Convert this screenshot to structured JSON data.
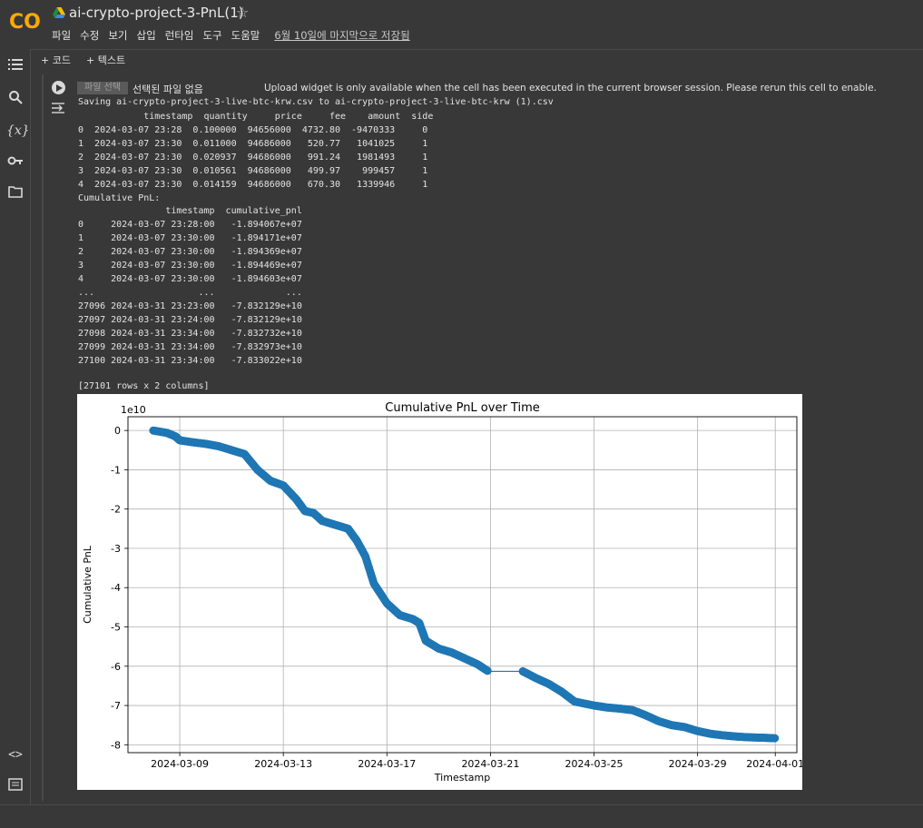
{
  "app": {
    "title": "ai-crypto-project-3-PnL(1)",
    "logo_text": "CO",
    "star": "☆",
    "menu": [
      "파일",
      "수정",
      "보기",
      "삽입",
      "런타임",
      "도구",
      "도움말"
    ],
    "last_saved": "6월 10일에 마지막으로 저장됨"
  },
  "toolbar": {
    "add_code": "+ 코드",
    "add_text": "+ 텍스트"
  },
  "sidebar_icons": [
    "table-of-contents-icon",
    "search-icon",
    "variables-icon",
    "secrets-key-icon",
    "files-folder-icon",
    "code-snippets-icon",
    "terminal-icon"
  ],
  "cell": {
    "file_button": "파일 선택",
    "no_file": "선택된 파일 없음",
    "upload_message": "Upload widget is only available when the cell has been executed in the current browser session. Please rerun this cell to enable.",
    "saving_line": "Saving ai-crypto-project-3-live-btc-krw.csv to ai-crypto-project-3-live-btc-krw (1).csv",
    "trades_table_text": "            timestamp  quantity     price     fee    amount  side\n0  2024-03-07 23:28  0.100000  94656000  4732.80  -9470333     0\n1  2024-03-07 23:30  0.011000  94686000   520.77   1041025     1\n2  2024-03-07 23:30  0.020937  94686000   991.24   1981493     1\n3  2024-03-07 23:30  0.010561  94686000   499.97    999457     1\n4  2024-03-07 23:30  0.014159  94686000   670.30   1339946     1\nCumulative PnL:",
    "pnl_table_text": "                timestamp  cumulative_pnl\n0     2024-03-07 23:28:00   -1.894067e+07\n1     2024-03-07 23:30:00   -1.894171e+07\n2     2024-03-07 23:30:00   -1.894369e+07\n3     2024-03-07 23:30:00   -1.894469e+07\n4     2024-03-07 23:30:00   -1.894603e+07\n...                   ...             ...\n27096 2024-03-31 23:23:00   -7.832129e+10\n27097 2024-03-31 23:24:00   -7.832129e+10\n27098 2024-03-31 23:34:00   -7.832732e+10\n27099 2024-03-31 23:34:00   -7.832973e+10\n27100 2024-03-31 23:34:00   -7.833022e+10",
    "rows_note": "[27101 rows x 2 columns]"
  },
  "chart_data": {
    "type": "line",
    "title": "Cumulative PnL over Time",
    "xlabel": "Timestamp",
    "ylabel": "Cumulative PnL",
    "y_offset_label": "1e10",
    "x_ticks": [
      "2024-03-09",
      "2024-03-13",
      "2024-03-17",
      "2024-03-21",
      "2024-03-25",
      "2024-03-29",
      "2024-04-01"
    ],
    "y_ticks": [
      0,
      -1,
      -2,
      -3,
      -4,
      -5,
      -6,
      -7,
      -8
    ],
    "ylim": [
      -8.2,
      0.35
    ],
    "xlim_days": [
      "2024-03-07 00:00",
      "2024-04-01 20:00"
    ],
    "grid": true,
    "marker": "o",
    "color": "#1f77b4",
    "series": [
      {
        "points": [
          [
            "2024-03-07 23:28",
            -0.002
          ],
          [
            "2024-03-08 12:00",
            -0.06
          ],
          [
            "2024-03-08 20:00",
            -0.15
          ],
          [
            "2024-03-09 00:00",
            -0.25
          ],
          [
            "2024-03-09 12:00",
            -0.3
          ],
          [
            "2024-03-10 00:00",
            -0.34
          ],
          [
            "2024-03-10 12:00",
            -0.4
          ],
          [
            "2024-03-11 00:00",
            -0.5
          ],
          [
            "2024-03-11 12:00",
            -0.6
          ],
          [
            "2024-03-12 00:00",
            -1.0
          ],
          [
            "2024-03-12 12:00",
            -1.28
          ],
          [
            "2024-03-13 00:00",
            -1.4
          ],
          [
            "2024-03-13 12:00",
            -1.75
          ],
          [
            "2024-03-13 20:00",
            -2.05
          ],
          [
            "2024-03-14 04:00",
            -2.1
          ],
          [
            "2024-03-14 12:00",
            -2.3
          ],
          [
            "2024-03-15 00:00",
            -2.4
          ],
          [
            "2024-03-15 12:00",
            -2.5
          ],
          [
            "2024-03-15 20:00",
            -2.8
          ],
          [
            "2024-03-16 04:00",
            -3.2
          ],
          [
            "2024-03-16 12:00",
            -3.9
          ],
          [
            "2024-03-17 00:00",
            -4.4
          ],
          [
            "2024-03-17 12:00",
            -4.7
          ],
          [
            "2024-03-18 00:00",
            -4.8
          ],
          [
            "2024-03-18 06:00",
            -4.9
          ],
          [
            "2024-03-18 12:00",
            -5.35
          ],
          [
            "2024-03-19 00:00",
            -5.55
          ],
          [
            "2024-03-19 12:00",
            -5.65
          ],
          [
            "2024-03-20 00:00",
            -5.8
          ],
          [
            "2024-03-20 12:00",
            -5.95
          ],
          [
            "2024-03-20 22:00",
            -6.13
          ],
          [
            "2024-03-22 06:00",
            -6.13
          ],
          [
            "2024-03-22 18:00",
            -6.3
          ],
          [
            "2024-03-23 06:00",
            -6.45
          ],
          [
            "2024-03-23 18:00",
            -6.65
          ],
          [
            "2024-03-24 06:00",
            -6.9
          ],
          [
            "2024-03-25 00:00",
            -7.0
          ],
          [
            "2024-03-25 12:00",
            -7.05
          ],
          [
            "2024-03-26 00:00",
            -7.08
          ],
          [
            "2024-03-26 12:00",
            -7.12
          ],
          [
            "2024-03-27 00:00",
            -7.25
          ],
          [
            "2024-03-27 12:00",
            -7.4
          ],
          [
            "2024-03-28 00:00",
            -7.5
          ],
          [
            "2024-03-28 12:00",
            -7.55
          ],
          [
            "2024-03-29 00:00",
            -7.65
          ],
          [
            "2024-03-29 12:00",
            -7.72
          ],
          [
            "2024-03-30 00:00",
            -7.76
          ],
          [
            "2024-03-30 12:00",
            -7.79
          ],
          [
            "2024-03-31 00:00",
            -7.81
          ],
          [
            "2024-03-31 12:00",
            -7.82
          ],
          [
            "2024-03-31 23:34",
            -7.833
          ]
        ]
      }
    ]
  }
}
